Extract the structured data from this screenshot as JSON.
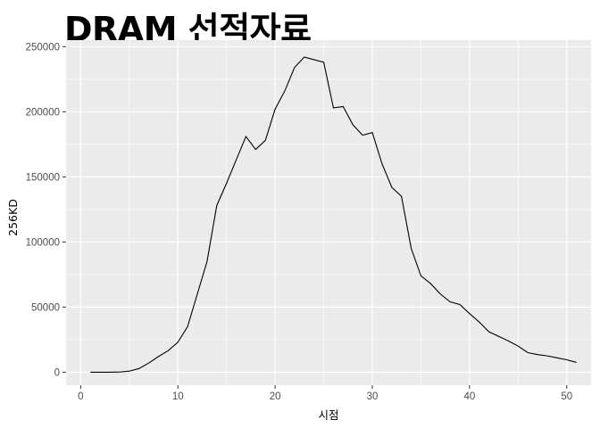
{
  "chart_data": {
    "type": "line",
    "title": "DRAM 선적자료",
    "xlabel": "시점",
    "ylabel": "256KD",
    "xlim": [
      -1.5,
      52.5
    ],
    "ylim": [
      -10000,
      255000
    ],
    "x_ticks": [
      0,
      10,
      20,
      30,
      40,
      50
    ],
    "x_tick_labels": [
      "0",
      "10",
      "20",
      "30",
      "40",
      "50"
    ],
    "y_ticks": [
      0,
      50000,
      100000,
      150000,
      200000,
      250000
    ],
    "y_tick_labels": [
      "0",
      "50000",
      "100000",
      "150000",
      "200000",
      "250000"
    ],
    "grid": true,
    "panel_color": "#ebebeb",
    "grid_color": "#ffffff",
    "line_color": "#000000",
    "series": [
      {
        "x": [
          1,
          2,
          3,
          4,
          5,
          6,
          7,
          8,
          9,
          10,
          11,
          12,
          13,
          14,
          15,
          16,
          17,
          18,
          19,
          20,
          21,
          22,
          23,
          24,
          25,
          26,
          27,
          28,
          29,
          30,
          31,
          32,
          33,
          34,
          35,
          36,
          37,
          38,
          39,
          40,
          41,
          42,
          43,
          44,
          45,
          46,
          47,
          48,
          49,
          50,
          51
        ],
        "values": [
          0,
          0,
          0,
          100,
          800,
          2800,
          7000,
          12000,
          16500,
          23000,
          35000,
          60000,
          85000,
          128000,
          145000,
          163000,
          181000,
          171000,
          178000,
          202000,
          216000,
          234000,
          242000,
          240000,
          238000,
          203000,
          204000,
          190000,
          182000,
          184000,
          160000,
          142000,
          135000,
          95000,
          74000,
          68000,
          60000,
          54000,
          52000,
          45000,
          38500,
          31000,
          27500,
          24000,
          20000,
          15000,
          13500,
          12500,
          11000,
          9500,
          7500
        ]
      }
    ]
  }
}
